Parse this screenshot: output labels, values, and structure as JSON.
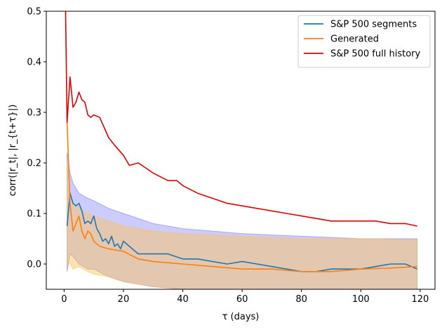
{
  "chart_data": {
    "type": "line",
    "title": "",
    "xlabel": "τ (days)",
    "ylabel": "corr(|r_t|, |r_{t+τ}|)",
    "xlim": [
      -6,
      125
    ],
    "ylim": [
      -0.05,
      0.5
    ],
    "xticks": [
      0,
      20,
      40,
      60,
      80,
      100,
      120
    ],
    "yticks": [
      0.0,
      0.1,
      0.2,
      0.3,
      0.4,
      0.5
    ],
    "xtick_labels": [
      "0",
      "20",
      "40",
      "60",
      "80",
      "100",
      "120"
    ],
    "ytick_labels": [
      "0.0",
      "0.1",
      "0.2",
      "0.3",
      "0.4",
      "0.5"
    ],
    "grid": false,
    "legend_position": "top-right",
    "colors": {
      "segments": "#1f77b4",
      "generated": "#ff7f0e",
      "full": "#e00000",
      "segments_band": "#8080ff",
      "generated_band": "#ffc14d"
    },
    "series": [
      {
        "name": "S&P 500 segments",
        "x": [
          1,
          2,
          3,
          4,
          5,
          6,
          7,
          8,
          9,
          10,
          11,
          12,
          13,
          14,
          15,
          16,
          17,
          18,
          19,
          20,
          25,
          30,
          35,
          40,
          45,
          50,
          55,
          60,
          65,
          70,
          75,
          80,
          85,
          90,
          95,
          100,
          105,
          110,
          115,
          119
        ],
        "values": [
          0.075,
          0.14,
          0.12,
          0.115,
          0.12,
          0.105,
          0.08,
          0.085,
          0.08,
          0.095,
          0.07,
          0.06,
          0.045,
          0.05,
          0.04,
          0.055,
          0.035,
          0.04,
          0.03,
          0.045,
          0.02,
          0.02,
          0.02,
          0.01,
          0.01,
          0.005,
          0.0,
          0.005,
          0.0,
          -0.005,
          -0.01,
          -0.015,
          -0.015,
          -0.01,
          -0.01,
          -0.01,
          -0.005,
          0.0,
          0.0,
          -0.01
        ]
      },
      {
        "name": "Generated",
        "x": [
          1,
          2,
          3,
          4,
          5,
          6,
          7,
          8,
          9,
          10,
          11,
          12,
          15,
          20,
          25,
          30,
          40,
          50,
          60,
          70,
          80,
          90,
          100,
          110,
          119
        ],
        "values": [
          0.28,
          0.12,
          0.065,
          0.08,
          0.095,
          0.065,
          0.05,
          0.065,
          0.06,
          0.045,
          0.04,
          0.035,
          0.03,
          0.025,
          0.01,
          0.005,
          0.0,
          -0.005,
          -0.01,
          -0.01,
          -0.015,
          -0.015,
          -0.01,
          -0.008,
          -0.005
        ]
      },
      {
        "name": "S&P 500 full history",
        "x": [
          0.5,
          1,
          2,
          3,
          4,
          5,
          6,
          7,
          8,
          9,
          10,
          12,
          15,
          17,
          20,
          22,
          25,
          30,
          35,
          38,
          40,
          45,
          50,
          55,
          60,
          65,
          70,
          75,
          80,
          85,
          90,
          95,
          100,
          105,
          110,
          115,
          119
        ],
        "values": [
          0.5,
          0.28,
          0.37,
          0.31,
          0.32,
          0.34,
          0.325,
          0.32,
          0.295,
          0.29,
          0.295,
          0.29,
          0.25,
          0.235,
          0.215,
          0.195,
          0.2,
          0.18,
          0.165,
          0.165,
          0.155,
          0.14,
          0.13,
          0.12,
          0.115,
          0.11,
          0.105,
          0.1,
          0.095,
          0.09,
          0.085,
          0.085,
          0.085,
          0.085,
          0.08,
          0.08,
          0.075
        ]
      }
    ],
    "bands": [
      {
        "of": "S&P 500 segments",
        "x": [
          1,
          2,
          3,
          5,
          8,
          10,
          15,
          20,
          30,
          40,
          60,
          80,
          100,
          119
        ],
        "upper": [
          0.22,
          0.18,
          0.16,
          0.14,
          0.13,
          0.125,
          0.11,
          0.1,
          0.08,
          0.07,
          0.06,
          0.055,
          0.05,
          0.05
        ],
        "lower": [
          -0.015,
          0.02,
          0.015,
          0.0,
          -0.01,
          -0.01,
          -0.025,
          -0.035,
          -0.045,
          -0.05,
          -0.05,
          -0.05,
          -0.05,
          -0.05
        ]
      },
      {
        "of": "Generated",
        "x": [
          1,
          2,
          3,
          5,
          8,
          10,
          15,
          20,
          30,
          40,
          60,
          80,
          100,
          119
        ],
        "upper": [
          0.2,
          0.14,
          0.12,
          0.11,
          0.1,
          0.095,
          0.085,
          0.075,
          0.065,
          0.06,
          0.055,
          0.05,
          0.05,
          0.048
        ],
        "lower": [
          0.0,
          0.0,
          -0.01,
          -0.005,
          -0.015,
          -0.02,
          -0.025,
          -0.035,
          -0.045,
          -0.05,
          -0.05,
          -0.05,
          -0.05,
          -0.05
        ]
      }
    ]
  }
}
